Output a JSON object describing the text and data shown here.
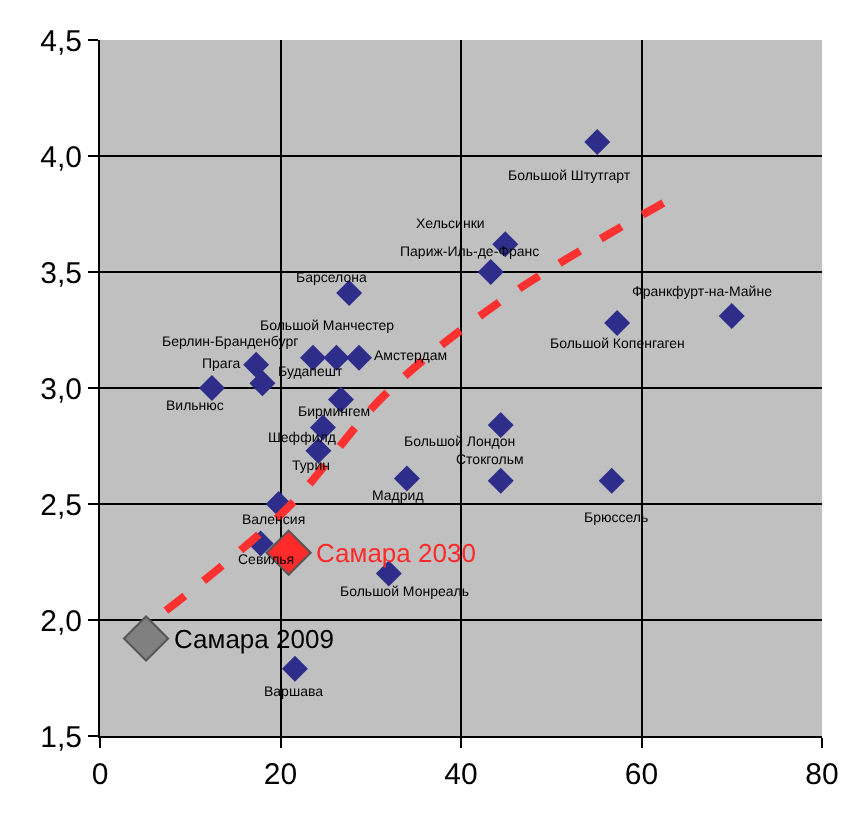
{
  "chart_data": {
    "type": "scatter",
    "xlim": [
      0,
      80
    ],
    "ylim": [
      1.5,
      4.5
    ],
    "xticks": [
      0,
      20,
      40,
      60,
      80
    ],
    "yticks": [
      {
        "value": 1.5,
        "label": "1,5"
      },
      {
        "value": 2.0,
        "label": "2,0"
      },
      {
        "value": 2.5,
        "label": "2,5"
      },
      {
        "value": 3.0,
        "label": "3,0"
      },
      {
        "value": 3.5,
        "label": "3,5"
      },
      {
        "value": 4.0,
        "label": "4,0"
      },
      {
        "value": 4.5,
        "label": "4,5"
      }
    ],
    "grid": true,
    "series": [
      {
        "type": "scatter",
        "marker": "diamond",
        "color": "#2e2e8a",
        "x": [
          55.1,
          44.9,
          43.3,
          70,
          57.3,
          27.6,
          23.6,
          26.2,
          28.7,
          17.3,
          18.0,
          12.4,
          26.7,
          24.7,
          24.2,
          34,
          44.4,
          44.4,
          56.7,
          19.8,
          17.8,
          32,
          21.6
        ],
        "values": [
          4.06,
          3.62,
          3.5,
          3.31,
          3.28,
          3.41,
          3.13,
          3.13,
          3.13,
          3.1,
          3.02,
          3.0,
          2.95,
          2.83,
          2.73,
          2.61,
          2.84,
          2.6,
          2.6,
          2.5,
          2.33,
          2.2,
          1.79
        ]
      },
      {
        "type": "scatter",
        "marker": "diamond",
        "color": "#ff2a2a",
        "x": [
          20.9
        ],
        "values": [
          2.29
        ]
      },
      {
        "type": "scatter",
        "marker": "diamond",
        "color": "#808080",
        "x": [
          5.1
        ],
        "values": [
          1.92
        ]
      },
      {
        "type": "line",
        "marker": "none",
        "line_style": "dashed",
        "color": "#ff3030",
        "x": [
          7.3,
          20.7,
          31.8,
          45,
          63
        ],
        "values": [
          2.04,
          2.48,
          2.98,
          3.39,
          3.81
        ]
      }
    ],
    "annotations": [
      {
        "text": "Большой Штутгарт",
        "x": 55.1,
        "y": 4.06
      },
      {
        "text": "Хельсинки",
        "x": 44.9,
        "y": 3.62
      },
      {
        "text": "Париж-Иль-де-Франс",
        "x": 43.3,
        "y": 3.5
      },
      {
        "text": "Франкфурт-на-Майне",
        "x": 70,
        "y": 3.31
      },
      {
        "text": "Большой Копенгаген",
        "x": 57.3,
        "y": 3.28
      },
      {
        "text": "Барселона",
        "x": 27.6,
        "y": 3.41
      },
      {
        "text": "Большой Манчестер",
        "x": 23.6,
        "y": 3.13
      },
      {
        "text": "Берлин-Бранденбург",
        "x": 26.2,
        "y": 3.13
      },
      {
        "text": "Амстердам",
        "x": 28.7,
        "y": 3.13
      },
      {
        "text": "Прага",
        "x": 17.3,
        "y": 3.1
      },
      {
        "text": "Будапешт",
        "x": 18.0,
        "y": 3.02
      },
      {
        "text": "Вильнюс",
        "x": 12.4,
        "y": 3.0
      },
      {
        "text": "Бирмингем",
        "x": 26.7,
        "y": 2.95
      },
      {
        "text": "Шеффилд",
        "x": 24.7,
        "y": 2.83
      },
      {
        "text": "Турин",
        "x": 24.2,
        "y": 2.73
      },
      {
        "text": "Мадрид",
        "x": 34,
        "y": 2.61
      },
      {
        "text": "Большой Лондон",
        "x": 44.4,
        "y": 2.84
      },
      {
        "text": "Стокгольм",
        "x": 44.4,
        "y": 2.6
      },
      {
        "text": "Брюссель",
        "x": 56.7,
        "y": 2.6
      },
      {
        "text": "Валенсия",
        "x": 19.8,
        "y": 2.5
      },
      {
        "text": "Севилья",
        "x": 17.8,
        "y": 2.33
      },
      {
        "text": "Большой Монреаль",
        "x": 32,
        "y": 2.2
      },
      {
        "text": "Варшава",
        "x": 21.6,
        "y": 1.79
      },
      {
        "text": "Самара 2030",
        "x": 20.9,
        "y": 2.29
      },
      {
        "text": "Самара 2009",
        "x": 5.1,
        "y": 1.92
      }
    ]
  }
}
